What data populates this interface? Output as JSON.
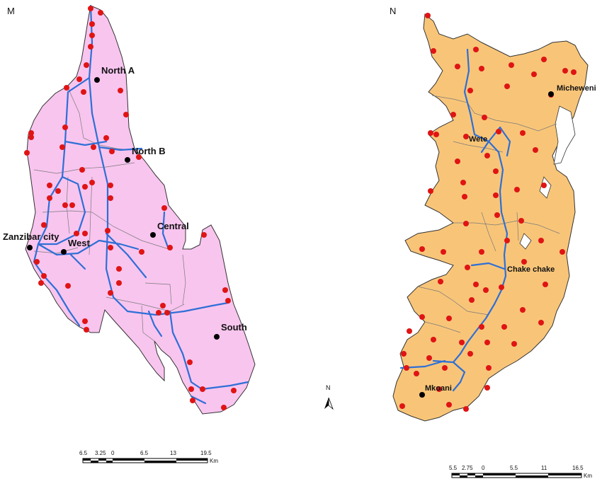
{
  "panels": {
    "left": {
      "label": "M",
      "districts": [
        "North A",
        "North B",
        "Central",
        "West",
        "Zanzibar city",
        "South"
      ],
      "scale": {
        "ticks": [
          "6.5",
          "3.25",
          "0",
          "6.5",
          "13",
          "19.5"
        ],
        "unit": "Km"
      }
    },
    "right": {
      "label": "N",
      "districts": [
        "Micheweni",
        "Wete",
        "Chake chake",
        "Mkoani"
      ],
      "scale": {
        "ticks": [
          "5.5",
          "2.75",
          "0",
          "5.5",
          "11",
          "16.5"
        ],
        "unit": "Km"
      }
    }
  },
  "north_arrow": "N",
  "colors": {
    "unguja_fill": "#f8c5ef",
    "pemba_fill": "#f8c578",
    "roads": "#2f6fd6",
    "sample_points": "#e01414",
    "towns": "#000000"
  }
}
